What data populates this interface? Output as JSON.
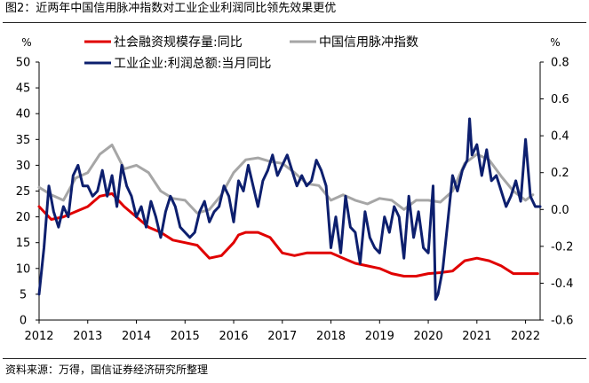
{
  "figure": {
    "title": "图2：近两年中国信用脉冲指数对工业企业利润同比领先效果更优",
    "source": "资料来源：万得，国信证券经济研究所整理"
  },
  "chart_data": {
    "type": "line",
    "left_axis_label": "%",
    "right_axis_label": "%",
    "left_ylim": [
      0,
      50
    ],
    "left_ticks": [
      "0",
      "5",
      "10",
      "15",
      "20",
      "25",
      "30",
      "35",
      "40",
      "45",
      "50"
    ],
    "right_ylim": [
      -0.6,
      0.8
    ],
    "right_ticks": [
      "-0.6",
      "-0.4",
      "-0.2",
      "0.0",
      "0.2",
      "0.4",
      "0.6",
      "0.8"
    ],
    "xlim": [
      2012,
      2022.3
    ],
    "x_ticks": [
      "2012",
      "2013",
      "2014",
      "2015",
      "2016",
      "2017",
      "2018",
      "2019",
      "2020",
      "2021",
      "2022"
    ],
    "grid": false,
    "legend_position": "top",
    "colors": {
      "social_financing": "#e00000",
      "credit_impulse": "#a6a6a6",
      "industrial_profit": "#0d1f6e"
    },
    "series": [
      {
        "name": "社会融资规模存量:同比",
        "axis": "left",
        "color": "#e00000",
        "x": [
          2012.0,
          2012.25,
          2012.5,
          2012.75,
          2013.0,
          2013.25,
          2013.5,
          2013.75,
          2014.0,
          2014.25,
          2014.5,
          2014.75,
          2015.0,
          2015.25,
          2015.5,
          2015.75,
          2016.0,
          2016.1,
          2016.25,
          2016.5,
          2016.75,
          2017.0,
          2017.25,
          2017.5,
          2017.75,
          2018.0,
          2018.25,
          2018.5,
          2018.75,
          2019.0,
          2019.25,
          2019.5,
          2019.75,
          2020.0,
          2020.25,
          2020.5,
          2020.75,
          2021.0,
          2021.25,
          2021.5,
          2021.75,
          2022.0,
          2022.25
        ],
        "values": [
          22,
          19.5,
          20,
          21,
          22,
          24,
          24.5,
          22,
          20,
          18,
          17,
          15.5,
          15,
          14.5,
          12,
          12.5,
          15,
          16.5,
          17,
          17,
          16,
          13,
          12.5,
          13,
          13,
          13,
          12,
          11,
          10.5,
          10,
          9,
          8.5,
          8.5,
          9,
          9.2,
          9.5,
          11.5,
          12,
          11.5,
          10.5,
          9,
          9,
          9
        ]
      },
      {
        "name": "中国信用脉冲指数",
        "axis": "right",
        "color": "#a6a6a6",
        "x": [
          2012.0,
          2012.25,
          2012.5,
          2012.75,
          2013.0,
          2013.25,
          2013.5,
          2013.75,
          2014.0,
          2014.25,
          2014.5,
          2014.75,
          2015.0,
          2015.25,
          2015.5,
          2015.75,
          2016.0,
          2016.25,
          2016.5,
          2016.75,
          2017.0,
          2017.25,
          2017.5,
          2017.75,
          2018.0,
          2018.25,
          2018.5,
          2018.75,
          2019.0,
          2019.25,
          2019.5,
          2019.75,
          2020.0,
          2020.25,
          2020.5,
          2020.75,
          2021.0,
          2021.25,
          2021.5,
          2021.75,
          2022.0,
          2022.15
        ],
        "values": [
          0.12,
          0.08,
          0.05,
          0.17,
          0.2,
          0.3,
          0.35,
          0.22,
          0.24,
          0.2,
          0.1,
          0.06,
          0.05,
          -0.02,
          0.0,
          0.08,
          0.2,
          0.27,
          0.28,
          0.26,
          0.25,
          0.2,
          0.14,
          0.13,
          0.05,
          0.08,
          0.05,
          0.03,
          0.06,
          0.05,
          0.0,
          0.05,
          0.05,
          0.04,
          0.1,
          0.25,
          0.3,
          0.27,
          0.18,
          0.1,
          0.05,
          0.08
        ]
      },
      {
        "name": "工业企业:利润总额:当月同比",
        "axis": "left",
        "color": "#0d1f6e",
        "x": [
          2012.0,
          2012.1,
          2012.2,
          2012.3,
          2012.4,
          2012.5,
          2012.6,
          2012.7,
          2012.8,
          2012.9,
          2013.0,
          2013.1,
          2013.2,
          2013.3,
          2013.4,
          2013.5,
          2013.6,
          2013.7,
          2013.8,
          2013.9,
          2014.0,
          2014.1,
          2014.2,
          2014.3,
          2014.4,
          2014.5,
          2014.6,
          2014.7,
          2014.8,
          2014.9,
          2015.0,
          2015.1,
          2015.2,
          2015.3,
          2015.4,
          2015.5,
          2015.6,
          2015.7,
          2015.8,
          2015.9,
          2016.0,
          2016.1,
          2016.2,
          2016.3,
          2016.4,
          2016.5,
          2016.6,
          2016.7,
          2016.8,
          2016.9,
          2017.0,
          2017.1,
          2017.2,
          2017.3,
          2017.4,
          2017.5,
          2017.6,
          2017.7,
          2017.8,
          2017.9,
          2018.0,
          2018.1,
          2018.2,
          2018.3,
          2018.4,
          2018.5,
          2018.6,
          2018.7,
          2018.8,
          2018.9,
          2019.0,
          2019.1,
          2019.2,
          2019.3,
          2019.4,
          2019.5,
          2019.6,
          2019.7,
          2019.8,
          2019.9,
          2020.0,
          2020.1,
          2020.15,
          2020.2,
          2020.3,
          2020.4,
          2020.5,
          2020.6,
          2020.7,
          2020.8,
          2020.85,
          2020.9,
          2021.0,
          2021.1,
          2021.2,
          2021.3,
          2021.4,
          2021.5,
          2021.6,
          2021.7,
          2021.8,
          2021.9,
          2022.0,
          2022.1,
          2022.2,
          2022.3
        ],
        "values": [
          5,
          14,
          26,
          21,
          18,
          22,
          20,
          28,
          30,
          26,
          26,
          24,
          25,
          29,
          24,
          28,
          22,
          30,
          26,
          24,
          20,
          22,
          18,
          23,
          20,
          16,
          21,
          24,
          22,
          18,
          17,
          16,
          17,
          21,
          23,
          19,
          21,
          22,
          26,
          24,
          19,
          27,
          25,
          30,
          26,
          22,
          27,
          29,
          32,
          28,
          30,
          32,
          29,
          26,
          28,
          26,
          27,
          31,
          29,
          26,
          14,
          20,
          13,
          24,
          18,
          17,
          11,
          21,
          16,
          14,
          13,
          20,
          17,
          22,
          20,
          12,
          24,
          16,
          21,
          14,
          13,
          26,
          4,
          5,
          10,
          19,
          28,
          25,
          29,
          31,
          39,
          32,
          34,
          28,
          33,
          27,
          28,
          25,
          22,
          24,
          27,
          23,
          35,
          24,
          22,
          22
        ]
      }
    ]
  }
}
